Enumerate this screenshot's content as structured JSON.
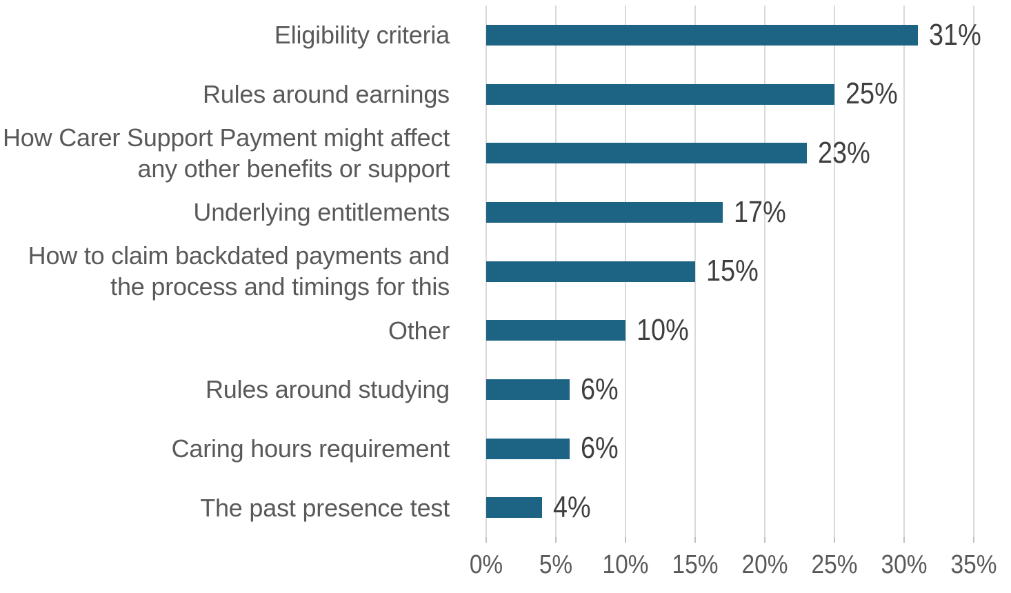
{
  "chart_data": {
    "type": "bar",
    "orientation": "horizontal",
    "title": "",
    "categories": [
      "Eligibility criteria",
      "Rules around earnings",
      "How Carer Support Payment might affect\nany other benefits or support",
      "Underlying entitlements",
      "How to claim backdated payments and\nthe process and timings for this",
      "Other",
      "Rules around studying",
      "Caring hours requirement",
      "The past presence test"
    ],
    "values": [
      31,
      25,
      23,
      17,
      15,
      10,
      6,
      6,
      4
    ],
    "value_labels": [
      "31%",
      "25%",
      "23%",
      "17%",
      "15%",
      "10%",
      "6%",
      "6%",
      "4%"
    ],
    "x_tick_values": [
      0,
      5,
      10,
      15,
      20,
      25,
      30,
      35
    ],
    "x_tick_labels": [
      "0%",
      "5%",
      "10%",
      "15%",
      "20%",
      "25%",
      "30%",
      "35%"
    ],
    "xlim": [
      0,
      35
    ],
    "grid": "vertical-gridlines-on",
    "legend": "none",
    "colors": {
      "bar": "#1d6484",
      "category_text": "#595959",
      "value_text": "#3f3f3f",
      "axis_text": "#595959",
      "gridline": "#d9d9d9",
      "tick_mark": "#bfbfbf",
      "background": "#ffffff"
    }
  }
}
